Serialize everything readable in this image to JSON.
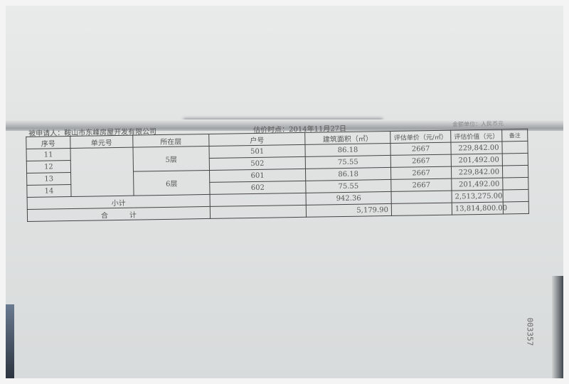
{
  "document": {
    "respondent": "被申请人：鞍山市东峰房屋开发有限公司",
    "valuation_date": "估价时点：2014年11月27日",
    "currency_unit": "金额单位：人民币元",
    "headers": [
      "序号",
      "单元号",
      "所在层",
      "户号",
      "建筑面积（㎡）",
      "评估单价（元/㎡）",
      "评估价值（元）",
      "备注"
    ],
    "rows": [
      {
        "no": "11",
        "unit": "",
        "floor": "5层",
        "room": "501",
        "area": "86.18",
        "price": "2667",
        "value": "229,842.00"
      },
      {
        "no": "12",
        "unit": "",
        "floor": "",
        "room": "502",
        "area": "75.55",
        "price": "2667",
        "value": "201,492.00"
      },
      {
        "no": "13",
        "unit": "",
        "floor": "6层",
        "room": "601",
        "area": "86.18",
        "price": "2667",
        "value": "229,842.00"
      },
      {
        "no": "14",
        "unit": "",
        "floor": "",
        "room": "602",
        "area": "75.55",
        "price": "2667",
        "value": "201,492.00"
      }
    ],
    "subtotal": {
      "label": "小计",
      "area": "942.36",
      "value": "2,513,275.00"
    },
    "total": {
      "label": "合　　　计",
      "area": "5,179.90",
      "value": "13,814,800.00"
    },
    "page_number": "003357"
  }
}
